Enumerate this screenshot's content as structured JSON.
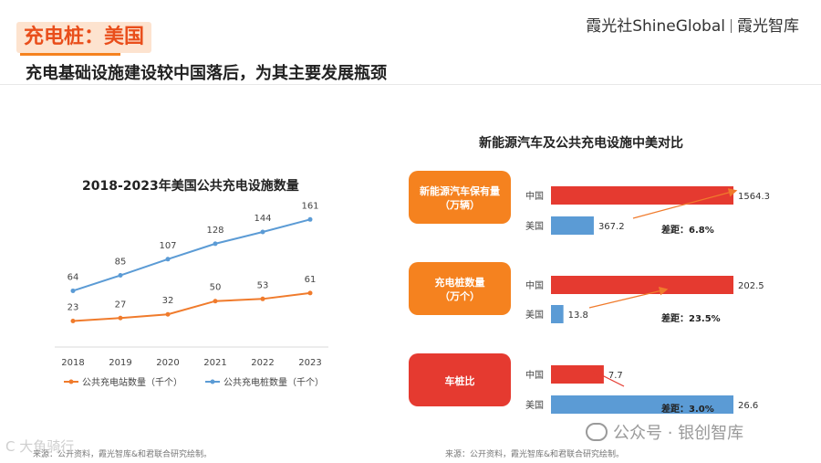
{
  "header": {
    "title": "充电桩：美国",
    "brand": {
      "left": "霞光社",
      "mid": "ShineGlobal",
      "right": "霞光智库"
    },
    "subtitle": "充电基础设施建设较中国落后，为其主要发展瓶颈"
  },
  "chart_data": [
    {
      "type": "line",
      "title": "2018-2023年美国公共充电设施数量",
      "x": [
        "2018",
        "2019",
        "2020",
        "2021",
        "2022",
        "2023"
      ],
      "series": [
        {
          "name": "公共充电站数量（千个）",
          "color": "#f07b2c",
          "values": [
            23,
            27,
            32,
            50,
            53,
            61
          ]
        },
        {
          "name": "公共充电桩数量（千个）",
          "color": "#5b9bd5",
          "values": [
            64,
            85,
            107,
            128,
            144,
            161
          ]
        }
      ],
      "ylim": [
        0,
        180
      ],
      "legend": "bottom"
    },
    {
      "type": "bar",
      "title": "新能源汽车及公共充电设施中美对比",
      "orientation": "horizontal",
      "groups": [
        {
          "label": "新能源汽车保有量（万辆）",
          "categories": [
            "中国",
            "美国"
          ],
          "values": [
            1564.3,
            367.2
          ],
          "gap_text": "差距：6.8%",
          "label_color": "#f5821f"
        },
        {
          "label": "充电桩数量（万个）",
          "categories": [
            "中国",
            "美国"
          ],
          "values": [
            202.5,
            13.8
          ],
          "gap_text": "差距：23.5%",
          "label_color": "#f5821f"
        },
        {
          "label": "车桩比",
          "categories": [
            "中国",
            "美国"
          ],
          "values": [
            7.7,
            26.6
          ],
          "gap_text": "差距：3.0%",
          "label_color": "#e53a30"
        }
      ],
      "colors": {
        "china": "#e53a30",
        "usa": "#5b9bd5"
      }
    }
  ],
  "sources": {
    "left": "来源：公开资料，霞光智库&和君联合研究绘制。",
    "right": "来源：公开资料，霞光智库&和君联合研究绘制。"
  },
  "watermark": {
    "right": "公众号 · 银创智库",
    "left": "C 大鱼骑行"
  }
}
